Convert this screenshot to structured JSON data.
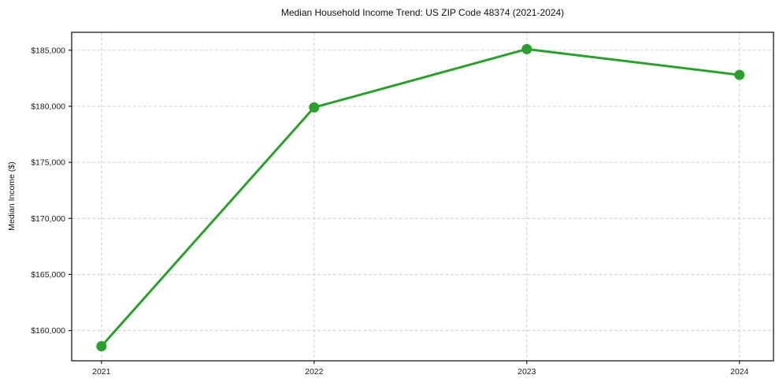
{
  "chart_data": {
    "type": "line",
    "title": "Median Household Income Trend: US ZIP Code 48374 (2021-2024)",
    "xlabel": "",
    "ylabel": "Median Income ($)",
    "x": [
      2021,
      2022,
      2023,
      2024
    ],
    "series": [
      {
        "name": "Median Household Income",
        "values": [
          158600,
          179900,
          185100,
          182800
        ]
      }
    ],
    "x_tick_labels": [
      "2021",
      "2022",
      "2023",
      "2024"
    ],
    "y_tick_values": [
      160000,
      165000,
      170000,
      175000,
      180000,
      185000
    ],
    "y_tick_labels": [
      "$160,000",
      "$165,000",
      "$170,000",
      "$175,000",
      "$180,000",
      "$185,000"
    ],
    "xlim": [
      2020.86,
      2024.16
    ],
    "ylim": [
      157300,
      186600
    ],
    "grid": true,
    "grid_style": "dashed",
    "legend": "none",
    "colors": {
      "line": "#2ca02c",
      "marker": "#2ca02c",
      "grid": "#cccccc",
      "spine": "#1a1a1a",
      "tick_label": "#1a1a1a",
      "background": "#ffffff"
    }
  }
}
